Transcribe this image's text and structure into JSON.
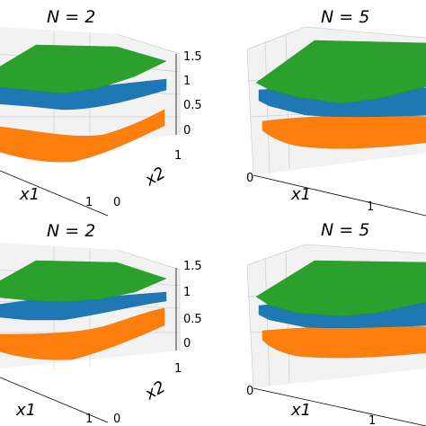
{
  "chart_data": [
    {
      "type": "surface3d",
      "title": "N = 2",
      "xlabel": "x1",
      "ylabel": "x2",
      "x_ticks": [
        "0",
        "1"
      ],
      "y_ticks": [
        "0",
        "1"
      ],
      "z_ticks": [
        "0",
        "0.5",
        "1",
        "1.5"
      ],
      "zlim": [
        -0.3,
        1.6
      ],
      "series": [
        {
          "color": "#ff7f0e",
          "z_corners": {
            "x0y0": 0.3,
            "x1y0": -0.1,
            "x0y1": 0.55,
            "x1y1": 0.4
          }
        },
        {
          "color": "#1f77b4",
          "z_corners": {
            "x0y0": 0.85,
            "x1y0": 0.45,
            "x0y1": 1.1,
            "x1y1": 1.05
          }
        },
        {
          "color": "#2ca02c",
          "z_corners": {
            "x0y0": 1.25,
            "x1y0": 1.05,
            "x0y1": 1.35,
            "x1y1": 1.35
          }
        }
      ]
    },
    {
      "type": "surface3d",
      "title": "N = 5",
      "xlabel": "x1",
      "x_ticks": [
        "0",
        "1"
      ],
      "series": [
        {
          "color": "#ff7f0e"
        },
        {
          "color": "#1f77b4"
        },
        {
          "color": "#2ca02c"
        }
      ]
    },
    {
      "type": "surface3d",
      "title": "N = 2",
      "xlabel": "x1",
      "ylabel": "x2",
      "x_ticks": [
        "0",
        "1"
      ],
      "y_ticks": [
        "0",
        "1"
      ],
      "z_ticks": [
        "0",
        "0.5",
        "1",
        "1.5"
      ],
      "series": [
        {
          "color": "#ff7f0e"
        },
        {
          "color": "#1f77b4"
        },
        {
          "color": "#2ca02c"
        }
      ]
    },
    {
      "type": "surface3d",
      "title": "N = 5",
      "xlabel": "x1",
      "x_ticks": [
        "0",
        "1"
      ],
      "series": [
        {
          "color": "#ff7f0e"
        },
        {
          "color": "#1f77b4"
        },
        {
          "color": "#2ca02c"
        }
      ]
    }
  ]
}
